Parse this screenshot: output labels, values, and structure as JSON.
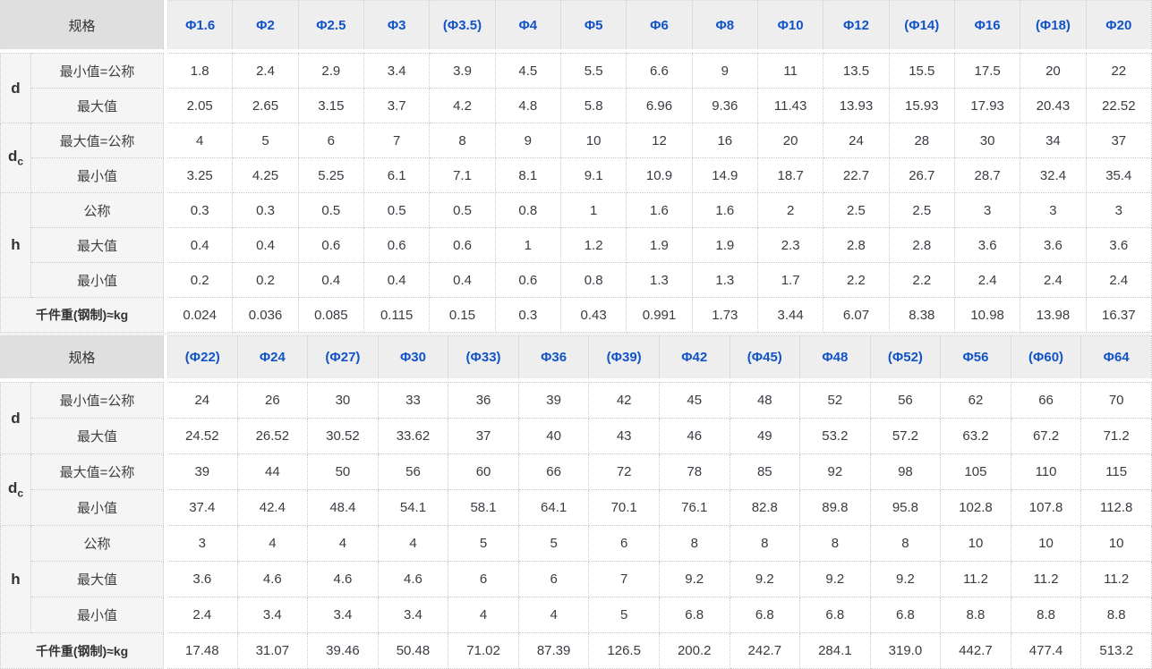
{
  "colors": {
    "header_accent": "#1254c8",
    "header_bg": "#eeeeee",
    "gauge_bg": "#dfdfdf",
    "label_bg": "#f5f5f5"
  },
  "tables": [
    {
      "header_label": "规格",
      "columns": [
        "Φ1.6",
        "Φ2",
        "Φ2.5",
        "Φ3",
        "(Φ3.5)",
        "Φ4",
        "Φ5",
        "Φ6",
        "Φ8",
        "Φ10",
        "Φ12",
        "(Φ14)",
        "Φ16",
        "(Φ18)",
        "Φ20"
      ],
      "row_groups": [
        {
          "label_main": "d",
          "label_sub": "",
          "rows": [
            {
              "label": "最小值=公称",
              "values": [
                "1.8",
                "2.4",
                "2.9",
                "3.4",
                "3.9",
                "4.5",
                "5.5",
                "6.6",
                "9",
                "11",
                "13.5",
                "15.5",
                "17.5",
                "20",
                "22"
              ]
            },
            {
              "label": "最大值",
              "values": [
                "2.05",
                "2.65",
                "3.15",
                "3.7",
                "4.2",
                "4.8",
                "5.8",
                "6.96",
                "9.36",
                "11.43",
                "13.93",
                "15.93",
                "17.93",
                "20.43",
                "22.52"
              ]
            }
          ]
        },
        {
          "label_main": "d",
          "label_sub": "c",
          "rows": [
            {
              "label": "最大值=公称",
              "values": [
                "4",
                "5",
                "6",
                "7",
                "8",
                "9",
                "10",
                "12",
                "16",
                "20",
                "24",
                "28",
                "30",
                "34",
                "37"
              ]
            },
            {
              "label": "最小值",
              "values": [
                "3.25",
                "4.25",
                "5.25",
                "6.1",
                "7.1",
                "8.1",
                "9.1",
                "10.9",
                "14.9",
                "18.7",
                "22.7",
                "26.7",
                "28.7",
                "32.4",
                "35.4"
              ]
            }
          ]
        },
        {
          "label_main": "h",
          "label_sub": "",
          "rows": [
            {
              "label": "公称",
              "values": [
                "0.3",
                "0.3",
                "0.5",
                "0.5",
                "0.5",
                "0.8",
                "1",
                "1.6",
                "1.6",
                "2",
                "2.5",
                "2.5",
                "3",
                "3",
                "3"
              ]
            },
            {
              "label": "最大值",
              "values": [
                "0.4",
                "0.4",
                "0.6",
                "0.6",
                "0.6",
                "1",
                "1.2",
                "1.9",
                "1.9",
                "2.3",
                "2.8",
                "2.8",
                "3.6",
                "3.6",
                "3.6"
              ]
            },
            {
              "label": "最小值",
              "values": [
                "0.2",
                "0.2",
                "0.4",
                "0.4",
                "0.4",
                "0.6",
                "0.8",
                "1.3",
                "1.3",
                "1.7",
                "2.2",
                "2.2",
                "2.4",
                "2.4",
                "2.4"
              ]
            }
          ]
        }
      ],
      "footer_row": {
        "label": "千件重(钢制)≈kg",
        "values": [
          "0.024",
          "0.036",
          "0.085",
          "0.115",
          "0.15",
          "0.3",
          "0.43",
          "0.991",
          "1.73",
          "3.44",
          "6.07",
          "8.38",
          "10.98",
          "13.98",
          "16.37"
        ]
      }
    },
    {
      "header_label": "规格",
      "columns": [
        "(Φ22)",
        "Φ24",
        "(Φ27)",
        "Φ30",
        "(Φ33)",
        "Φ36",
        "(Φ39)",
        "Φ42",
        "(Φ45)",
        "Φ48",
        "(Φ52)",
        "Φ56",
        "(Φ60)",
        "Φ64"
      ],
      "row_groups": [
        {
          "label_main": "d",
          "label_sub": "",
          "rows": [
            {
              "label": "最小值=公称",
              "values": [
                "24",
                "26",
                "30",
                "33",
                "36",
                "39",
                "42",
                "45",
                "48",
                "52",
                "56",
                "62",
                "66",
                "70"
              ]
            },
            {
              "label": "最大值",
              "values": [
                "24.52",
                "26.52",
                "30.52",
                "33.62",
                "37",
                "40",
                "43",
                "46",
                "49",
                "53.2",
                "57.2",
                "63.2",
                "67.2",
                "71.2"
              ]
            }
          ]
        },
        {
          "label_main": "d",
          "label_sub": "c",
          "rows": [
            {
              "label": "最大值=公称",
              "values": [
                "39",
                "44",
                "50",
                "56",
                "60",
                "66",
                "72",
                "78",
                "85",
                "92",
                "98",
                "105",
                "110",
                "115"
              ]
            },
            {
              "label": "最小值",
              "values": [
                "37.4",
                "42.4",
                "48.4",
                "54.1",
                "58.1",
                "64.1",
                "70.1",
                "76.1",
                "82.8",
                "89.8",
                "95.8",
                "102.8",
                "107.8",
                "112.8"
              ]
            }
          ]
        },
        {
          "label_main": "h",
          "label_sub": "",
          "rows": [
            {
              "label": "公称",
              "values": [
                "3",
                "4",
                "4",
                "4",
                "5",
                "5",
                "6",
                "8",
                "8",
                "8",
                "8",
                "10",
                "10",
                "10"
              ]
            },
            {
              "label": "最大值",
              "values": [
                "3.6",
                "4.6",
                "4.6",
                "4.6",
                "6",
                "6",
                "7",
                "9.2",
                "9.2",
                "9.2",
                "9.2",
                "11.2",
                "11.2",
                "11.2"
              ]
            },
            {
              "label": "最小值",
              "values": [
                "2.4",
                "3.4",
                "3.4",
                "3.4",
                "4",
                "4",
                "5",
                "6.8",
                "6.8",
                "6.8",
                "6.8",
                "8.8",
                "8.8",
                "8.8"
              ]
            }
          ]
        }
      ],
      "footer_row": {
        "label": "千件重(钢制)≈kg",
        "values": [
          "17.48",
          "31.07",
          "39.46",
          "50.48",
          "71.02",
          "87.39",
          "126.5",
          "200.2",
          "242.7",
          "284.1",
          "319.0",
          "442.7",
          "477.4",
          "513.2"
        ]
      }
    }
  ]
}
